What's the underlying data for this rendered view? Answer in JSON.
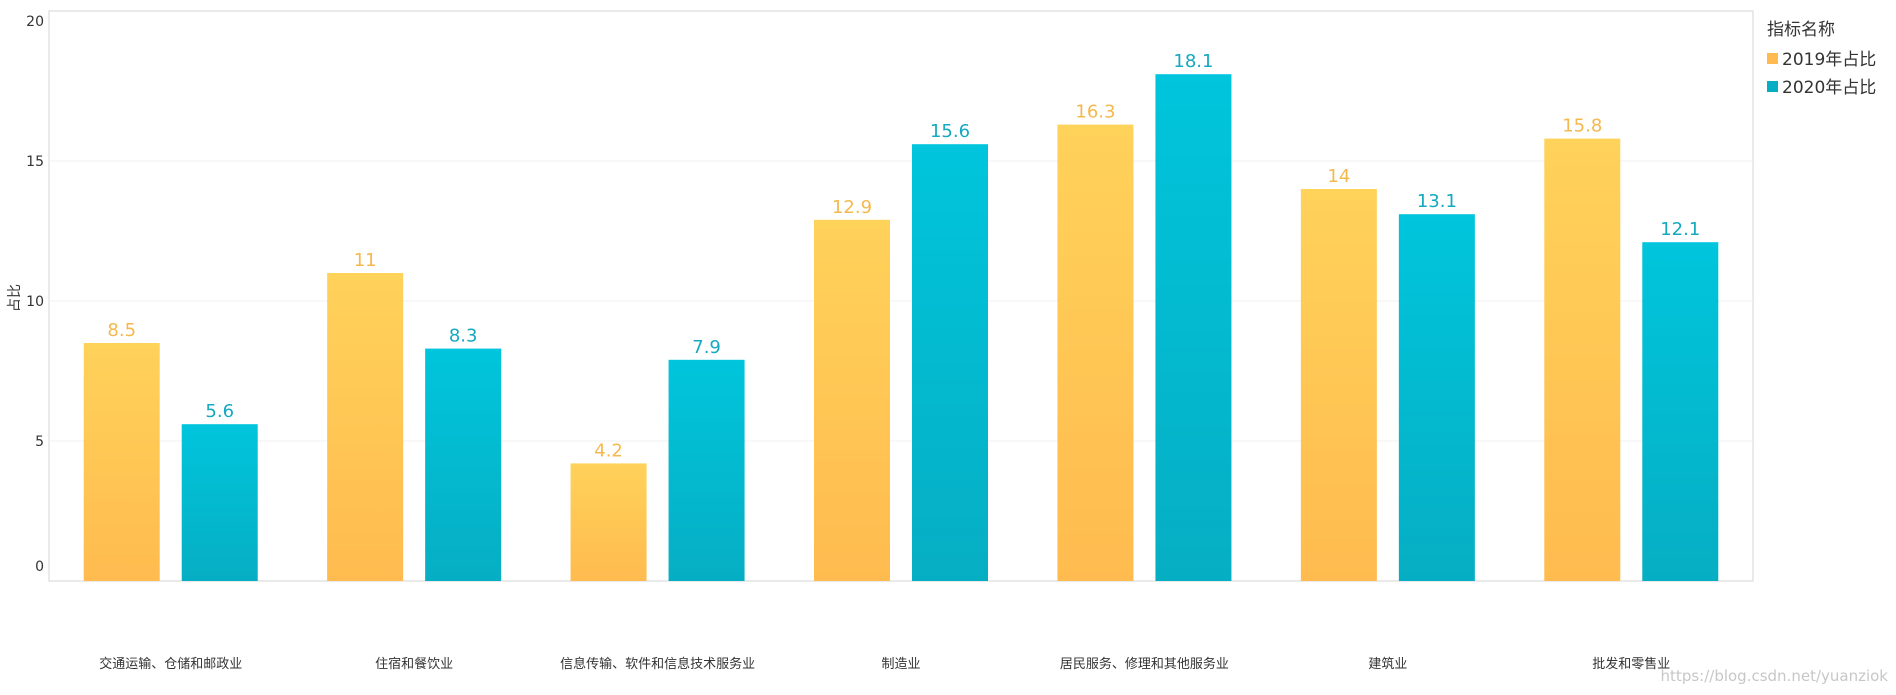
{
  "chart_data": {
    "type": "bar",
    "ylabel": "占比",
    "ylim": [
      0,
      20
    ],
    "yticks": [
      "0",
      "5",
      "10",
      "15",
      "20"
    ],
    "categories": [
      "交通运输、仓储和邮政业",
      "住宿和餐饮业",
      "信息传输、软件和信息技术服务业",
      "制造业",
      "居民服务、修理和其他服务业",
      "建筑业",
      "批发和零售业"
    ],
    "legend": {
      "title": "指标名称",
      "position": "top-right"
    },
    "series": [
      {
        "name": "2019年占比",
        "values": [
          8.5,
          11,
          4.2,
          12.9,
          16.3,
          14,
          15.8
        ],
        "labels": [
          "8.5",
          "11",
          "4.2",
          "12.9",
          "16.3",
          "14",
          "15.8"
        ],
        "color_top": "#ffd25a",
        "color_bottom": "#ffbb4f",
        "label_color": "#f5b84e"
      },
      {
        "name": "2020年占比",
        "values": [
          5.6,
          8.3,
          7.9,
          15.6,
          18.1,
          13.1,
          12.1
        ],
        "labels": [
          "5.6",
          "8.3",
          "7.9",
          "15.6",
          "18.1",
          "13.1",
          "12.1"
        ],
        "color_top": "#00c5dc",
        "color_bottom": "#06aec3",
        "label_color": "#14a9c0"
      }
    ],
    "grid": true
  },
  "watermark": "https://blog.csdn.net/yuanziok"
}
